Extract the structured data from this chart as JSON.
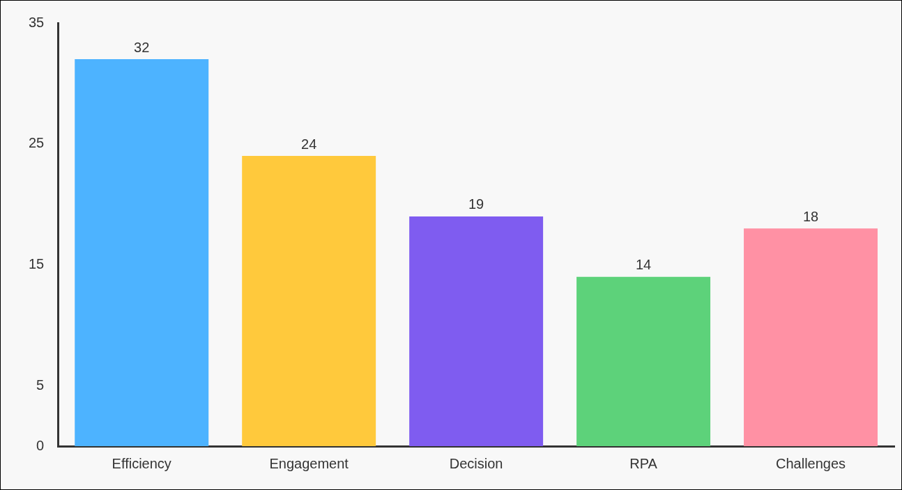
{
  "chart_data": {
    "type": "bar",
    "categories": [
      "Efficiency",
      "Engagement",
      "Decision",
      "RPA",
      "Challenges"
    ],
    "values": [
      32,
      24,
      19,
      14,
      18
    ],
    "colors": [
      "#4db3ff",
      "#ffc93c",
      "#7f5cf0",
      "#5dd27a",
      "#ff91a4"
    ],
    "ylim": [
      0,
      35
    ],
    "yticks": [
      0,
      5,
      15,
      25,
      35
    ],
    "grid": false,
    "legend": false,
    "data_labels": true
  }
}
